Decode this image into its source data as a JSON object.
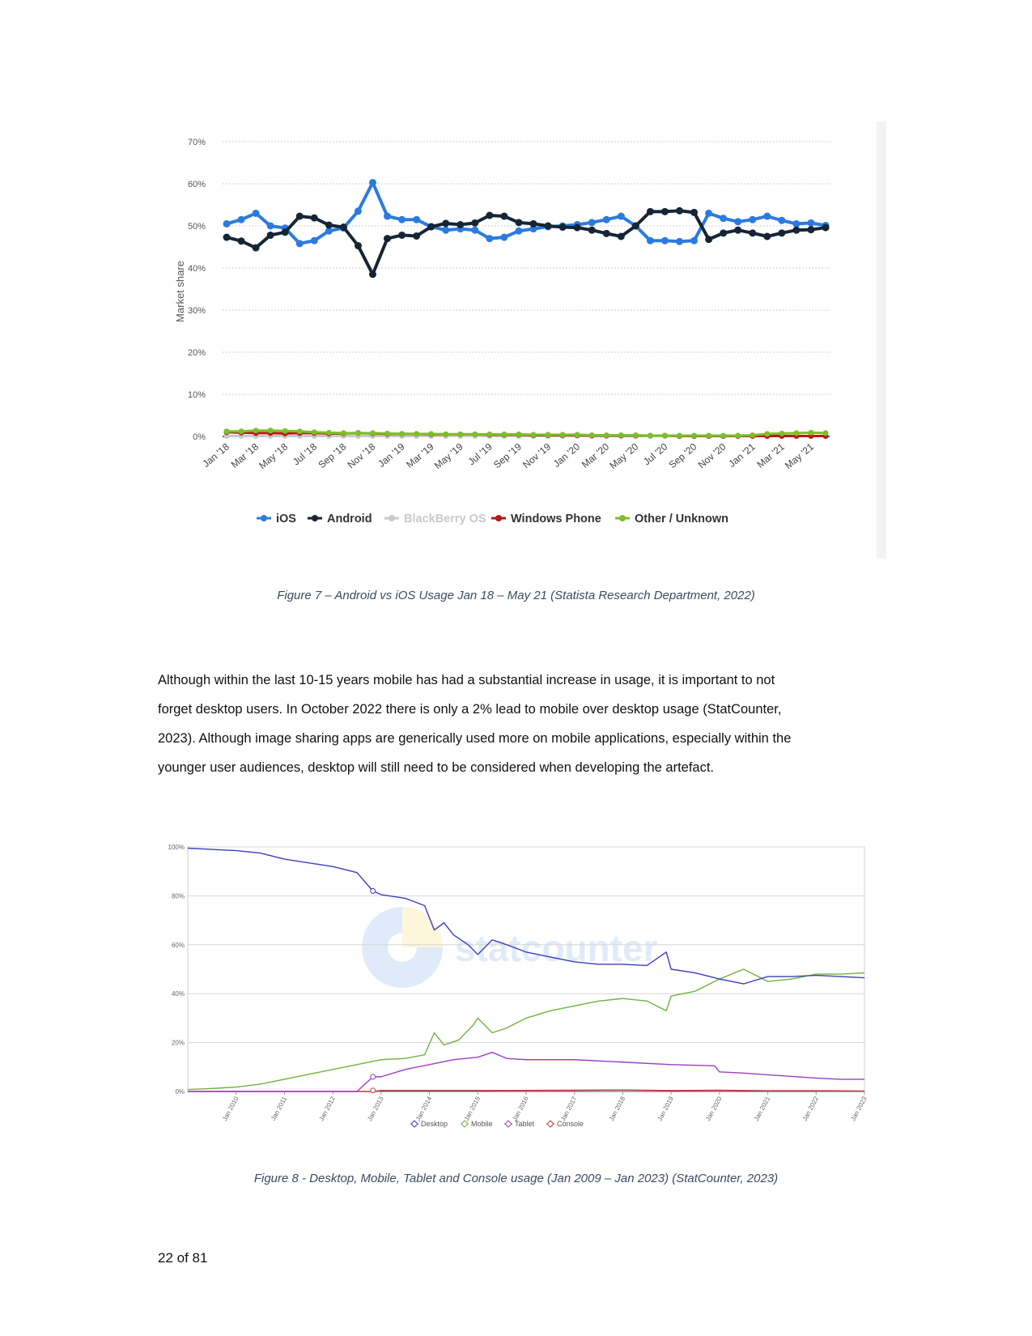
{
  "figure7": {
    "caption": "Figure 7 – Android vs iOS Usage Jan 18 – May 21 (Statista Research Department, 2022)",
    "chart_data": {
      "type": "line",
      "ylabel": "Market share",
      "y_ticks": [
        "0%",
        "10%",
        "20%",
        "30%",
        "40%",
        "50%",
        "60%",
        "70%"
      ],
      "ylim": [
        0,
        70
      ],
      "x_tick_labels": [
        "Jan '18",
        "Mar '18",
        "May '18",
        "Jul '18",
        "Sep '18",
        "Nov '18",
        "Jan '19",
        "Mar '19",
        "May '19",
        "Jul '19",
        "Sep '19",
        "Nov '19",
        "Jan '20",
        "Mar '20",
        "May '20",
        "Jul '20",
        "Sep '20",
        "Nov '20",
        "Jan '21",
        "Mar '21",
        "May '21"
      ],
      "grid": "horizontal dotted",
      "legend_position": "bottom",
      "series": [
        {
          "name": "iOS",
          "color": "#2b7bde",
          "values": [
            50.5,
            51.5,
            53,
            50,
            49.5,
            45.8,
            46.5,
            48.8,
            49.5,
            53.5,
            60.3,
            52.3,
            51.5,
            51.5,
            49.8,
            49,
            49.3,
            49,
            47,
            47.3,
            48.8,
            49.3,
            49.8,
            50,
            50.3,
            50.8,
            51.5,
            52.3,
            50,
            46.5,
            46.5,
            46.3,
            46.5,
            53,
            51.8,
            51,
            51.5,
            52.3,
            51.3,
            50.5,
            50.7,
            50.1
          ]
        },
        {
          "name": "Android",
          "color": "#152535",
          "values": [
            47.3,
            46.4,
            44.8,
            47.8,
            48.5,
            52.3,
            51.9,
            50.2,
            49.7,
            45.3,
            38.5,
            47,
            47.8,
            47.6,
            49.8,
            50.6,
            50.3,
            50.7,
            52.5,
            52.3,
            50.8,
            50.5,
            50,
            49.7,
            49.6,
            49,
            48.2,
            47.5,
            50,
            53.4,
            53.4,
            53.6,
            53.2,
            46.8,
            48.3,
            49,
            48.3,
            47.5,
            48.3,
            49,
            49.1,
            49.6
          ]
        },
        {
          "name": "BlackBerry OS",
          "color": "#c9c9c9",
          "values": [
            0.1,
            0.1,
            0.1,
            0.1,
            0.1,
            0.1,
            0.1,
            0.1,
            0.1,
            0.1,
            0.1,
            0.1,
            0.1,
            0.1,
            0.1,
            0.1,
            0.1,
            0.1,
            0.1,
            0.1,
            0.1,
            0.1,
            0.1,
            0.1,
            0.1,
            0.1,
            0.1,
            0.1,
            0.1,
            0.1,
            0.1,
            0.1,
            0.1,
            0.1,
            0.1,
            0.1,
            0.1,
            0.1,
            0.1,
            0.1,
            0.1,
            0.1
          ]
        },
        {
          "name": "Windows Phone",
          "color": "#b81818",
          "values": [
            1.0,
            0.9,
            0.8,
            0.8,
            0.7,
            0.8,
            0.8,
            0.7,
            0.7,
            0.8,
            0.7,
            0.6,
            0.6,
            0.6,
            0.5,
            0.5,
            0.5,
            0.5,
            0.4,
            0.4,
            0.4,
            0.3,
            0.3,
            0.3,
            0.3,
            0.2,
            0.2,
            0.2,
            0.2,
            0.2,
            0.2,
            0.1,
            0.1,
            0.1,
            0.1,
            0.1,
            0.1,
            0.1,
            0.1,
            0.1,
            0.1,
            0.1
          ]
        },
        {
          "name": "Other / Unknown",
          "color": "#7bc02a",
          "values": [
            1.2,
            1.2,
            1.4,
            1.4,
            1.3,
            1.2,
            1.0,
            0.9,
            0.8,
            0.7,
            0.8,
            0.7,
            0.6,
            0.6,
            0.6,
            0.5,
            0.5,
            0.5,
            0.5,
            0.5,
            0.5,
            0.4,
            0.4,
            0.4,
            0.4,
            0.3,
            0.3,
            0.3,
            0.3,
            0.2,
            0.2,
            0.2,
            0.2,
            0.2,
            0.2,
            0.2,
            0.3,
            0.6,
            0.7,
            0.8,
            0.9,
            0.8
          ]
        }
      ]
    }
  },
  "paragraph": {
    "lines": [
      "Although within the last 10-15 years mobile has had a substantial increase in usage, it is important to not",
      "forget desktop users. In October 2022 there is only a 2% lead to mobile over desktop usage (StatCounter,",
      "2023). Although image sharing apps are generically used more on mobile applications, especially within the",
      "younger user audiences, desktop will still need to be considered when developing the artefact."
    ]
  },
  "figure8": {
    "caption": "Figure 8 - Desktop, Mobile, Tablet and Console usage (Jan 2009 – Jan 2023) (StatCounter, 2023)",
    "watermark": "statcounter",
    "chart_data": {
      "type": "line",
      "y_ticks": [
        "0%",
        "20%",
        "40%",
        "60%",
        "80%",
        "100%"
      ],
      "ylim": [
        0,
        100
      ],
      "x_tick_labels": [
        "Jan 2010",
        "Jan 2011",
        "Jan 2012",
        "Jan 2013",
        "Jan 2014",
        "Jan 2015",
        "Jan 2016",
        "Jan 2017",
        "Jan 2018",
        "Jan 2019",
        "Jan 2020",
        "Jan 2021",
        "Jan 2022",
        "Jan 2023"
      ],
      "x_range": [
        "Jan 2009",
        "Jan 2023"
      ],
      "grid": "horizontal",
      "legend_position": "bottom",
      "series": [
        {
          "name": "Desktop",
          "color": "#3d3dbf",
          "x": [
            2009.0,
            2009.5,
            2010.0,
            2010.5,
            2011.0,
            2011.5,
            2012.0,
            2012.5,
            2012.83,
            2013.0,
            2013.5,
            2013.9,
            2014.1,
            2014.3,
            2014.5,
            2014.8,
            2015.0,
            2015.3,
            2015.6,
            2016.0,
            2016.5,
            2017.0,
            2017.5,
            2018.0,
            2018.5,
            2018.9,
            2019.0,
            2019.5,
            2020.0,
            2020.5,
            2021.0,
            2021.5,
            2022.0,
            2022.5,
            2023.0
          ],
          "y": [
            99.5,
            99,
            98.5,
            97.5,
            95,
            93.5,
            92,
            89.5,
            82,
            80.5,
            79,
            76,
            66,
            69,
            64,
            60,
            56,
            62,
            60,
            57,
            55,
            53,
            52,
            52,
            51.5,
            57,
            50,
            48.5,
            46,
            44,
            47,
            47,
            47.5,
            47,
            46.5
          ]
        },
        {
          "name": "Mobile",
          "color": "#6fb43c",
          "x": [
            2009.0,
            2009.5,
            2010.0,
            2010.5,
            2011.0,
            2011.5,
            2012.0,
            2012.5,
            2013.0,
            2013.5,
            2013.9,
            2014.1,
            2014.3,
            2014.6,
            2014.9,
            2015.0,
            2015.3,
            2015.6,
            2016.0,
            2016.5,
            2017.0,
            2017.5,
            2018.0,
            2018.5,
            2018.9,
            2019.0,
            2019.5,
            2020.0,
            2020.5,
            2021.0,
            2021.5,
            2022.0,
            2022.5,
            2023.0
          ],
          "y": [
            0.8,
            1.2,
            1.8,
            3,
            5,
            7,
            9,
            11,
            13,
            13.5,
            15,
            24,
            19,
            21,
            27,
            30,
            24,
            26,
            30,
            33,
            35,
            37,
            38,
            37,
            33,
            39,
            41,
            46,
            50,
            45,
            46,
            48,
            48,
            48.5
          ]
        },
        {
          "name": "Tablet",
          "color": "#9a3fc4",
          "x": [
            2009.0,
            2012.5,
            2012.83,
            2013.0,
            2013.5,
            2014.0,
            2014.5,
            2015.0,
            2015.3,
            2015.6,
            2016.0,
            2017.0,
            2018.0,
            2019.0,
            2019.9,
            2020.0,
            2020.5,
            2021.0,
            2022.0,
            2022.5,
            2023.0
          ],
          "y": [
            0,
            0,
            6,
            6,
            9,
            11,
            13,
            14,
            16,
            13.5,
            13,
            13,
            12,
            11,
            10.5,
            8,
            7.5,
            6.8,
            5.5,
            5,
            5
          ]
        },
        {
          "name": "Console",
          "color": "#c03a3a",
          "x": [
            2009.0,
            2012.83,
            2013.0,
            2015.0,
            2017.0,
            2018.0,
            2019.0,
            2020.0,
            2021.0,
            2022.0,
            2023.0
          ],
          "y": [
            0,
            0,
            0.4,
            0.4,
            0.5,
            0.6,
            0.4,
            0.5,
            0.3,
            0.3,
            0.2
          ]
        }
      ]
    }
  },
  "footer": {
    "page_number": "22 of 81"
  }
}
